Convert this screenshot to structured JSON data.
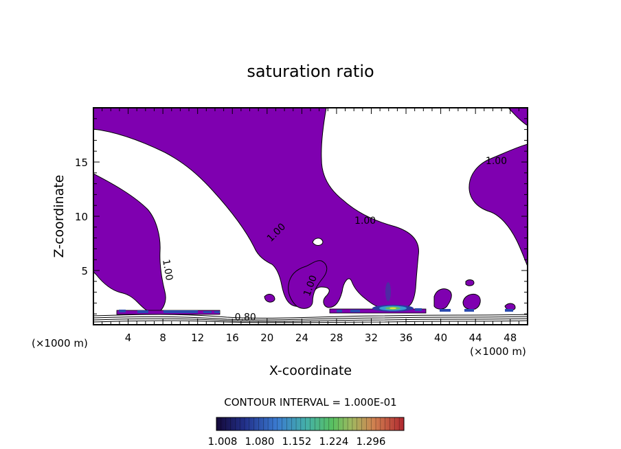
{
  "chart_data": {
    "type": "contour",
    "title": "saturation ratio",
    "xlabel": "X-coordinate",
    "ylabel": "Z-coordinate",
    "x_unit_left": "(×1000 m)",
    "x_unit_right": "(×1000 m)",
    "xlim": [
      0,
      50
    ],
    "ylim": [
      0,
      20
    ],
    "x_ticks": [
      4,
      8,
      12,
      16,
      20,
      24,
      28,
      32,
      36,
      40,
      44,
      48
    ],
    "y_ticks": [
      5,
      10,
      15
    ],
    "contour_interval_text": "CONTOUR INTERVAL = 1.000E-01",
    "contour_labels": [
      {
        "text": "1.00",
        "x": 8.2,
        "z": 5.0,
        "angle": 80
      },
      {
        "text": "1.00",
        "x": 21.3,
        "z": 8.3,
        "angle": -45
      },
      {
        "text": "1.00",
        "x": 25.3,
        "z": 3.5,
        "angle": -70
      },
      {
        "text": "1.00",
        "x": 31.3,
        "z": 9.3,
        "angle": 0
      },
      {
        "text": "1.00",
        "x": 46.4,
        "z": 14.8,
        "angle": 0
      },
      {
        "text": "0.80",
        "x": 17.5,
        "z": 0.4,
        "angle": 0
      }
    ],
    "colorbar": {
      "tick_labels": [
        "1.008",
        "1.080",
        "1.152",
        "1.224",
        "1.296"
      ],
      "colors": [
        "#1a0a4a",
        "#2a3aa0",
        "#3a8ad0",
        "#4ab0a0",
        "#60c060",
        "#a0c060",
        "#d08040",
        "#d04040",
        "#a02020"
      ]
    },
    "fill_color": "#7f00b0"
  }
}
